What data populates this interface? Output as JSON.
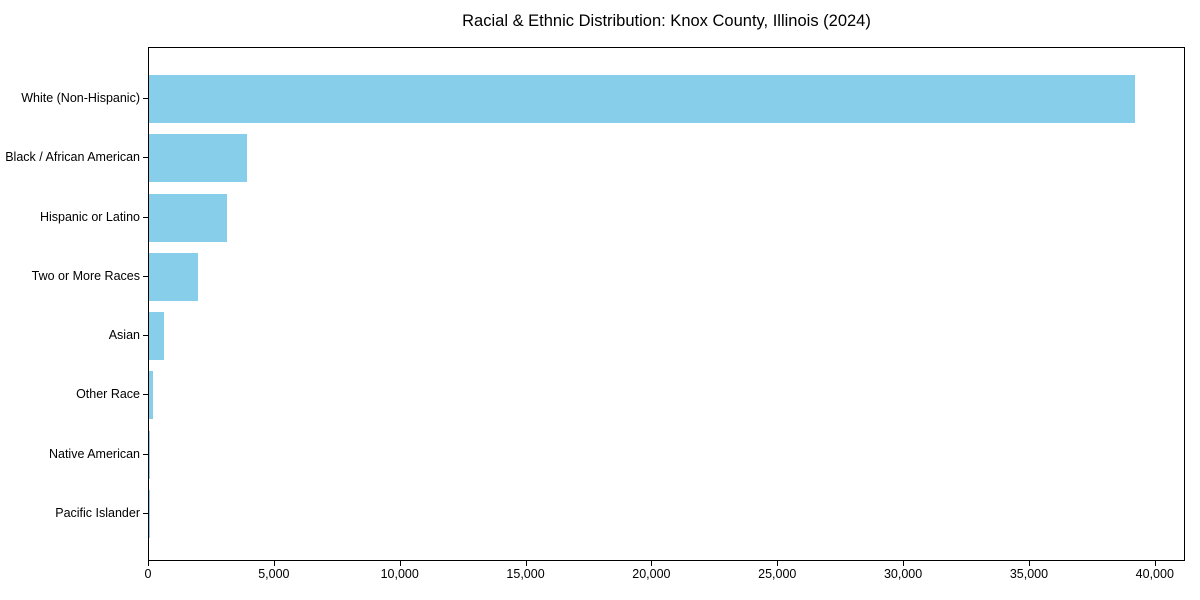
{
  "chart_data": {
    "type": "bar",
    "orientation": "horizontal",
    "title": "Racial & Ethnic Distribution: Knox County, Illinois (2024)",
    "xlabel": "",
    "ylabel": "",
    "categories": [
      "White (Non-Hispanic)",
      "Black / African American",
      "Hispanic or Latino",
      "Two or More Races",
      "Asian",
      "Other Race",
      "Native American",
      "Pacific Islander"
    ],
    "values": [
      39200,
      3900,
      3100,
      1950,
      600,
      150,
      25,
      10
    ],
    "bar_color": "#87CEEB",
    "xlim": [
      0,
      41160
    ],
    "x_ticks": [
      0,
      5000,
      10000,
      15000,
      20000,
      25000,
      30000,
      35000,
      40000
    ],
    "x_tick_labels": [
      "0",
      "5,000",
      "10,000",
      "15,000",
      "20,000",
      "25,000",
      "30,000",
      "35,000",
      "40,000"
    ],
    "grid": false,
    "legend": false,
    "background_color": "#FFFFFF",
    "text_color": "#000000"
  }
}
